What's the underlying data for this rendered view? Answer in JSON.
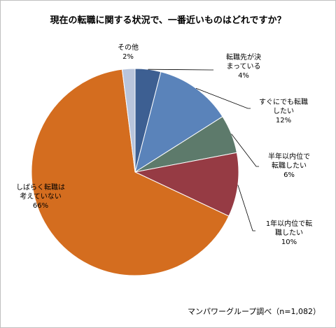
{
  "chart_data": {
    "type": "pie",
    "title": "現在の転職に関する状況で、一番近いものはどれですか？",
    "slices": [
      {
        "label": "転職先が決まっている",
        "lines": [
          "転職先が決",
          "まっている"
        ],
        "value": 4,
        "value_label": "4%",
        "color": "#3d5f92"
      },
      {
        "label": "すぐにでも転職したい",
        "lines": [
          "すぐにでも転職",
          "したい"
        ],
        "value": 12,
        "value_label": "12%",
        "color": "#5a83ba"
      },
      {
        "label": "半年以内位で転職したい",
        "lines": [
          "半年以内位で",
          "転職したい"
        ],
        "value": 6,
        "value_label": "6%",
        "color": "#5d7a6b"
      },
      {
        "label": "1年以内位で転職したい",
        "lines": [
          "1年以内位で転",
          "職したい"
        ],
        "value": 10,
        "value_label": "10%",
        "color": "#963b44"
      },
      {
        "label": "しばらく転職は考えていない",
        "lines": [
          "しばらく転職は",
          "考えていない"
        ],
        "value": 66,
        "value_label": "66%",
        "color": "#d46d1f"
      },
      {
        "label": "その他",
        "lines": [
          "その他"
        ],
        "value": 2,
        "value_label": "2%",
        "color": "#b9c5dc"
      }
    ],
    "source": "マンパワーグループ調べ（n=1,082）"
  }
}
